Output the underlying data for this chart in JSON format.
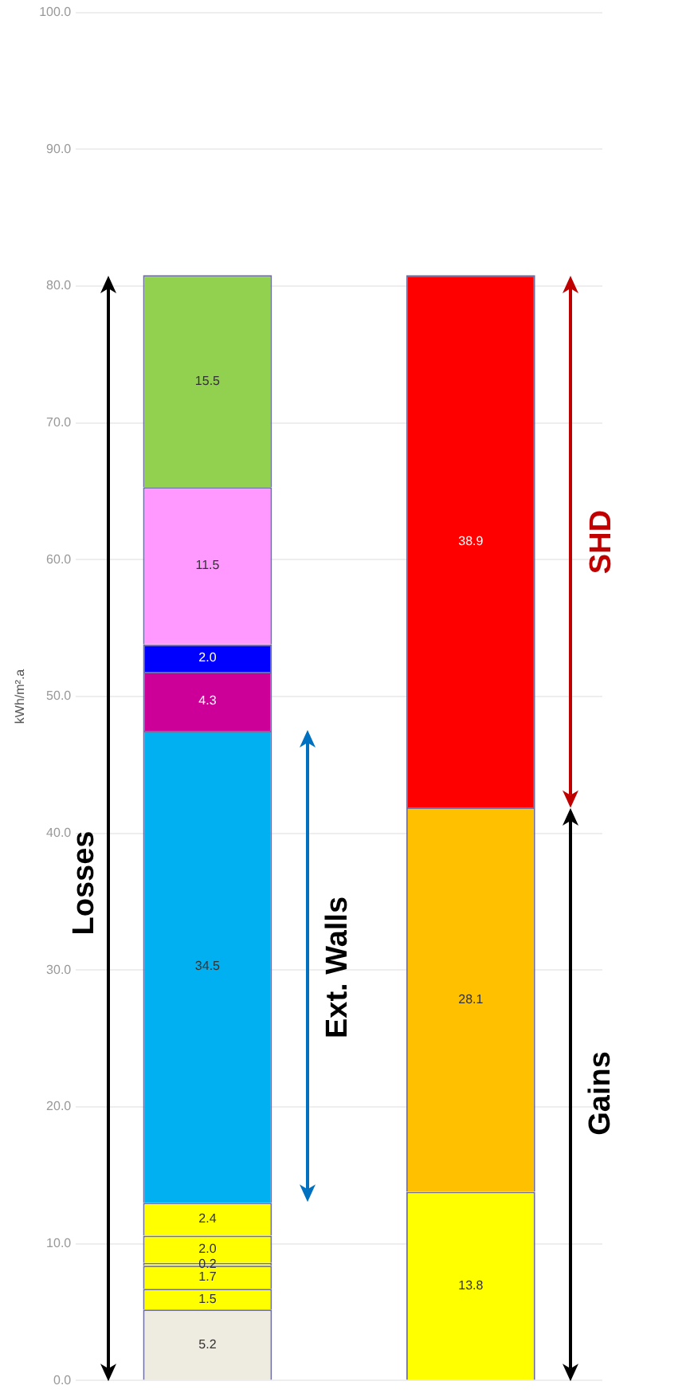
{
  "chart_data": {
    "type": "bar",
    "stacked": true,
    "categories": [
      null,
      null
    ],
    "ylabel": "kWh/m².a",
    "ylim": [
      0,
      100
    ],
    "yticks": [
      {
        "value": 0,
        "label": "0.0"
      },
      {
        "value": 10,
        "label": "10.0"
      },
      {
        "value": 20,
        "label": "20.0"
      },
      {
        "value": 30,
        "label": "30.0"
      },
      {
        "value": 40,
        "label": "40.0"
      },
      {
        "value": 50,
        "label": "50.0"
      },
      {
        "value": 60,
        "label": "60.0"
      },
      {
        "value": 70,
        "label": "70.0"
      },
      {
        "value": 80,
        "label": "80.0"
      },
      {
        "value": 90,
        "label": "90.0"
      },
      {
        "value": 100,
        "label": "100.0"
      }
    ],
    "grid": "y",
    "tick_labels": "y",
    "legend": false,
    "series": [
      {
        "color": "#eeece1",
        "values": [
          5.2,
          null
        ],
        "value_labels": [
          "5.2",
          null
        ]
      },
      {
        "color": "#ffff00",
        "values": [
          1.5,
          null
        ],
        "value_labels": [
          "1.5",
          null
        ]
      },
      {
        "color": "#ffff00",
        "values": [
          1.7,
          null
        ],
        "value_labels": [
          "1.7",
          null
        ]
      },
      {
        "color": "#ffff00",
        "values": [
          0.2,
          null
        ],
        "value_labels": [
          "0.2",
          null
        ]
      },
      {
        "color": "#ffff00",
        "values": [
          2.0,
          null
        ],
        "value_labels": [
          "2.0",
          null
        ]
      },
      {
        "color": "#ffff00",
        "values": [
          2.4,
          null
        ],
        "value_labels": [
          "2.4",
          null
        ]
      },
      {
        "color": "#00b0f0",
        "values": [
          34.5,
          null
        ],
        "value_labels": [
          "34.5",
          null
        ]
      },
      {
        "color": "#cc0099",
        "values": [
          4.3,
          null
        ],
        "value_labels": [
          "4.3",
          null
        ]
      },
      {
        "color": "#0000ff",
        "values": [
          2.0,
          null
        ],
        "value_labels": [
          "2.0",
          null
        ]
      },
      {
        "color": "#ff99ff",
        "values": [
          11.5,
          null
        ],
        "value_labels": [
          "11.5",
          null
        ]
      },
      {
        "color": "#92d050",
        "values": [
          15.5,
          null
        ],
        "value_labels": [
          "15.5",
          null
        ]
      },
      {
        "color": "#ffff00",
        "values": [
          null,
          13.8
        ],
        "value_labels": [
          null,
          "13.8"
        ]
      },
      {
        "color": "#ffc000",
        "values": [
          null,
          28.1
        ],
        "value_labels": [
          null,
          "28.1"
        ]
      },
      {
        "color": "#ff0000",
        "values": [
          null,
          38.9
        ],
        "value_labels": [
          null,
          "38.9"
        ]
      }
    ],
    "annotations": [
      "Losses",
      "Ext. Walls",
      "SHD",
      "Gains"
    ]
  }
}
